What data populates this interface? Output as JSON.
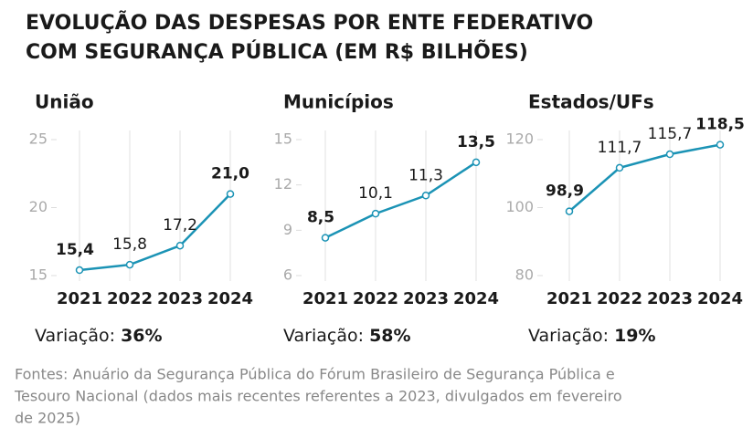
{
  "title": [
    "EVOLUÇÃO DAS DESPESAS POR ENTE FEDERATIVO",
    "COM SEGURANÇA PÚBLICA (EM R$ BILHÕES)"
  ],
  "chart_data": [
    {
      "type": "line",
      "title": "União",
      "categories": [
        "2021",
        "2022",
        "2023",
        "2024"
      ],
      "series": [
        {
          "name": "União",
          "color": "#1b93b5",
          "values": [
            15.4,
            15.8,
            17.2,
            21.0
          ],
          "value_labels": [
            "15,4",
            "15,8",
            "17,2",
            "21,0"
          ]
        }
      ],
      "ylim": [
        15,
        25
      ],
      "yticks": [
        15,
        20,
        25
      ],
      "grid": true,
      "variation_label": "Variação:",
      "variation": "36%"
    },
    {
      "type": "line",
      "title": "Municípios",
      "categories": [
        "2021",
        "2022",
        "2023",
        "2024"
      ],
      "series": [
        {
          "name": "Municípios",
          "color": "#1b93b5",
          "values": [
            8.5,
            10.1,
            11.3,
            13.5
          ],
          "value_labels": [
            "8,5",
            "10,1",
            "11,3",
            "13,5"
          ]
        }
      ],
      "ylim": [
        6,
        15
      ],
      "yticks": [
        6,
        9,
        12,
        15
      ],
      "grid": true,
      "variation_label": "Variação:",
      "variation": "58%"
    },
    {
      "type": "line",
      "title": "Estados/UFs",
      "categories": [
        "2021",
        "2022",
        "2023",
        "2024"
      ],
      "series": [
        {
          "name": "Estados/UFs",
          "color": "#1b93b5",
          "values": [
            98.9,
            111.7,
            115.7,
            118.5
          ],
          "value_labels": [
            "98,9",
            "111,7",
            "115,7",
            "118,5"
          ]
        }
      ],
      "ylim": [
        80,
        120
      ],
      "yticks": [
        80,
        100,
        120
      ],
      "grid": true,
      "variation_label": "Variação:",
      "variation": "19%"
    }
  ],
  "source": [
    "Fontes: Anuário da Segurança Pública do Fórum Brasileiro de Segurança Pública e",
    "Tesouro Nacional (dados mais recentes referentes a 2023, divulgados em fevereiro",
    "de 2025)"
  ]
}
